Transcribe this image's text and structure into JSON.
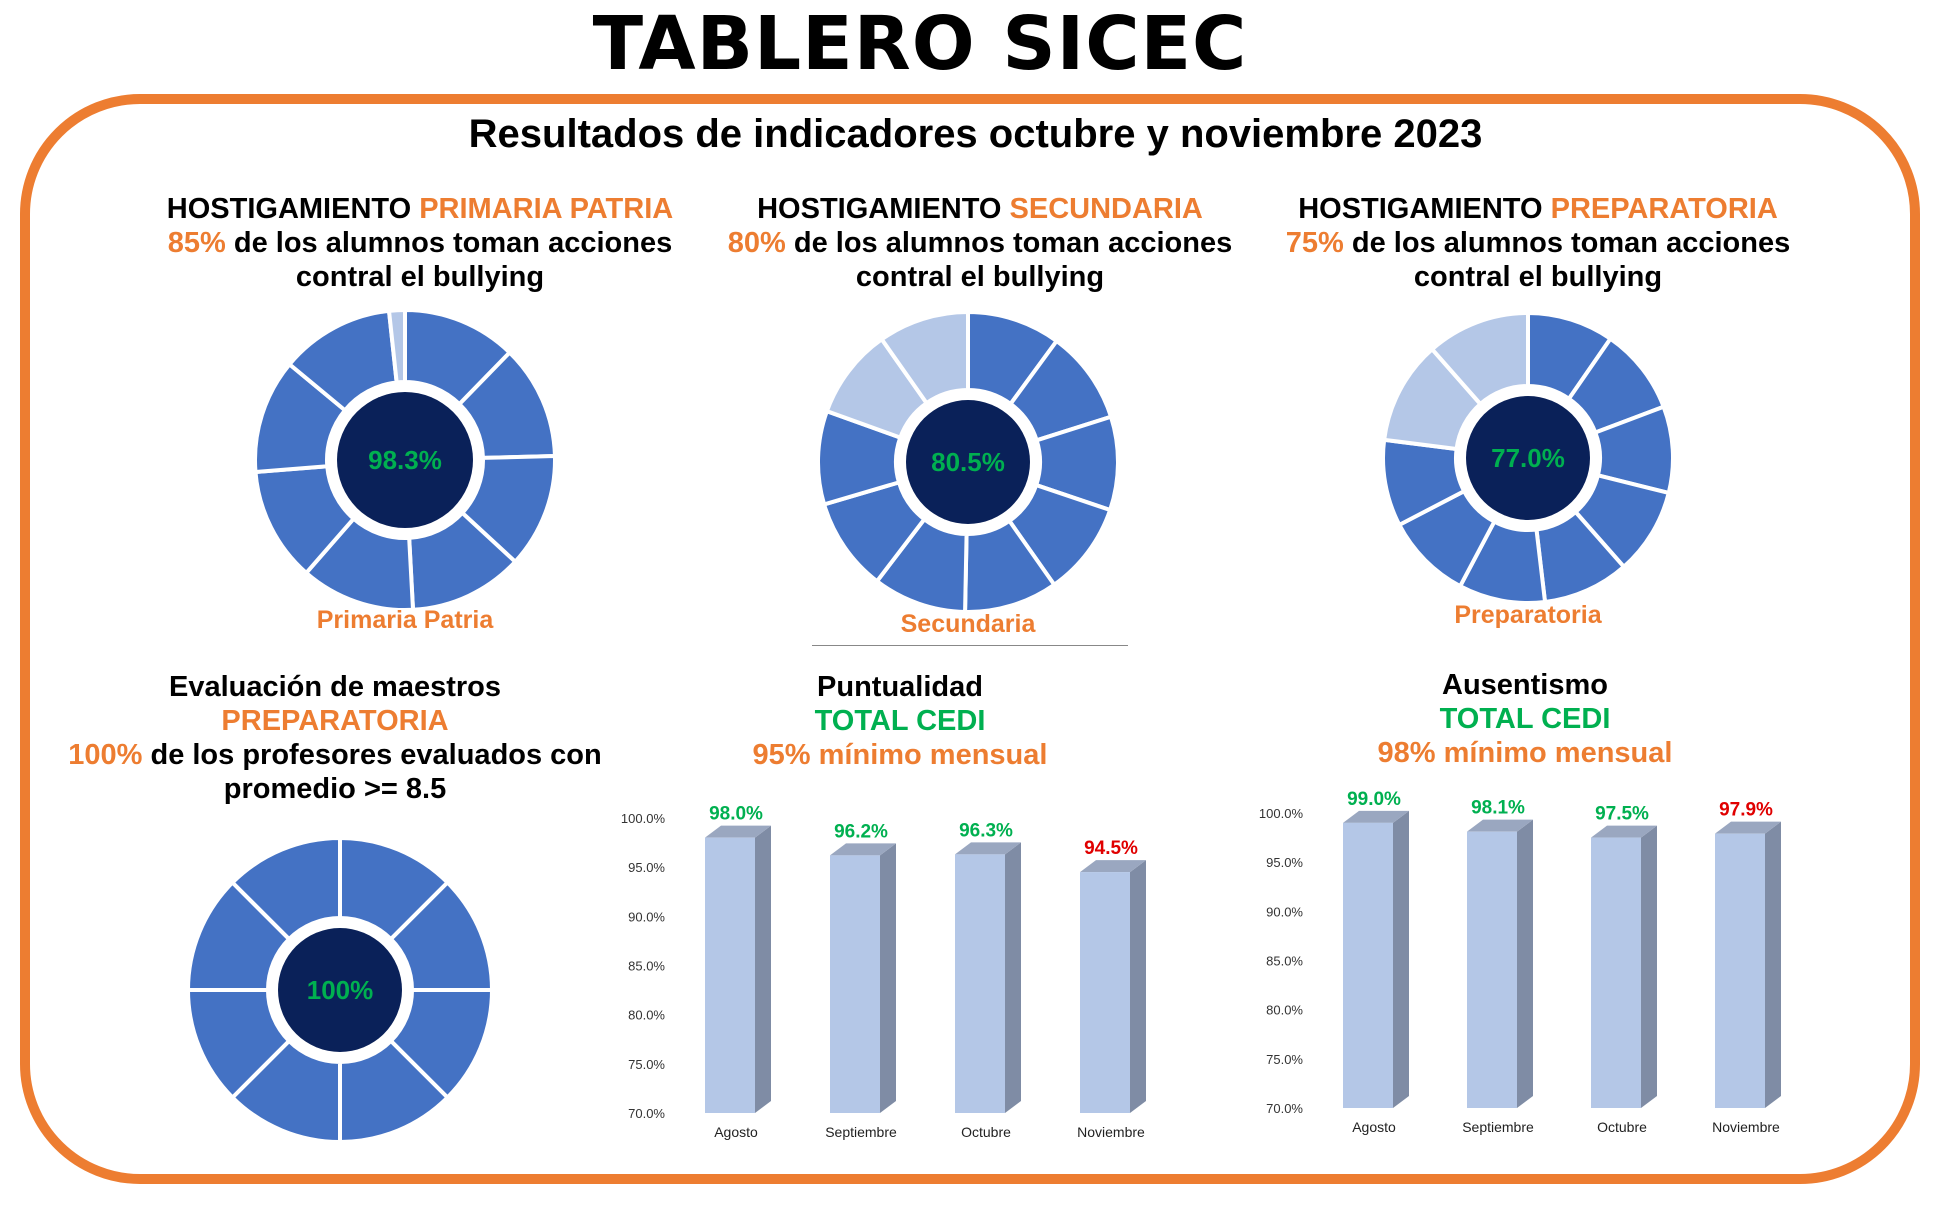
{
  "title": "TABLERO SICEC",
  "subtitle": "Resultados de indicadores octubre y noviembre 2023",
  "colors": {
    "accent": "#ED7D31",
    "good": "#00B050",
    "bad": "#E00000",
    "segment": "#4472C4",
    "segment_light": "#B4C7E7",
    "center": "#0A2159",
    "bar_face": "#B4C7E7",
    "bar_side": "#7F8CA5"
  },
  "blocks": {
    "primaria": {
      "line1": "HOSTIGAMIENTO ",
      "line1_accent": "PRIMARIA PATRIA",
      "pct": "85%",
      "text": " de los alumnos toman acciones",
      "line3": "contral el bullying"
    },
    "secundaria": {
      "line1": "HOSTIGAMIENTO ",
      "line1_accent": "SECUNDARIA",
      "pct": "80%",
      "text": " de los alumnos toman acciones",
      "line3": "contral el bullying"
    },
    "preparatoria": {
      "line1": "HOSTIGAMIENTO ",
      "line1_accent": "PREPARATORIA",
      "pct": "75%",
      "text": " de los alumnos toman acciones",
      "line3": "contral el bullying"
    },
    "maestros": {
      "line1": "Evaluación de maestros",
      "line2": "PREPARATORIA",
      "pct": "100%",
      "text": " de los profesores evaluados con",
      "line4": "promedio >= 8.5"
    },
    "puntualidad": {
      "line1": "Puntualidad",
      "line2": "TOTAL CEDI",
      "line3": "95% mínimo mensual"
    },
    "ausentismo": {
      "line1": "Ausentismo",
      "line2": "TOTAL CEDI",
      "line3": "98% mínimo mensual"
    }
  },
  "chart_data": [
    {
      "type": "pie",
      "name": "primaria-donut",
      "label": "Primaria Patria",
      "center_text": "98.3%",
      "value": 98.3,
      "segments": 8
    },
    {
      "type": "pie",
      "name": "secundaria-donut",
      "label": "Secundaria",
      "center_text": "80.5%",
      "value": 80.5,
      "segments": 8
    },
    {
      "type": "pie",
      "name": "preparatoria-donut",
      "label": "Preparatoria",
      "center_text": "77.0%",
      "value": 77.0,
      "segments": 8
    },
    {
      "type": "pie",
      "name": "maestros-donut",
      "label": "",
      "center_text": "100%",
      "value": 100,
      "segments": 8
    },
    {
      "type": "bar",
      "name": "puntualidad-chart",
      "categories": [
        "Agosto",
        "Septiembre",
        "Octubre",
        "Noviembre"
      ],
      "values": [
        98.0,
        96.2,
        96.3,
        94.5
      ],
      "labels": [
        "98.0%",
        "96.2%",
        "96.3%",
        "94.5%"
      ],
      "label_colors": [
        "#00B050",
        "#00B050",
        "#00B050",
        "#E00000"
      ],
      "ylim": [
        70,
        100
      ],
      "yticks": [
        "70.0%",
        "75.0%",
        "80.0%",
        "85.0%",
        "90.0%",
        "95.0%",
        "100.0%"
      ],
      "grid": false
    },
    {
      "type": "bar",
      "name": "ausentismo-chart",
      "categories": [
        "Agosto",
        "Septiembre",
        "Octubre",
        "Noviembre"
      ],
      "values": [
        99.0,
        98.1,
        97.5,
        97.9
      ],
      "labels": [
        "99.0%",
        "98.1%",
        "97.5%",
        "97.9%"
      ],
      "label_colors": [
        "#00B050",
        "#00B050",
        "#00B050",
        "#E00000"
      ],
      "ylim": [
        70,
        100
      ],
      "yticks": [
        "70.0%",
        "75.0%",
        "80.0%",
        "85.0%",
        "90.0%",
        "95.0%",
        "100.0%"
      ],
      "grid": false
    }
  ]
}
